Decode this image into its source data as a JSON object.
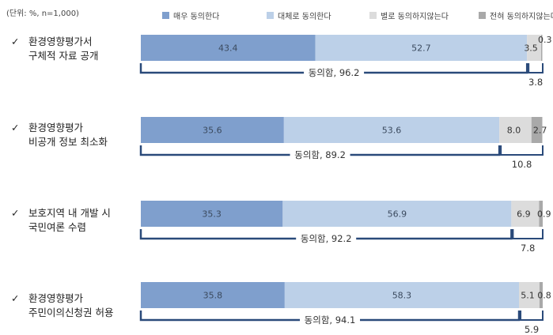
{
  "unit_note": "(단위: %, n=1,000)",
  "chart_data": {
    "type": "bar",
    "stacked": true,
    "orientation": "horizontal",
    "categories": [
      [
        "환경영향평가서",
        "구체적 자료 공개"
      ],
      [
        "환경영향평가",
        "비공개 정보 최소화"
      ],
      [
        "보호지역 내 개발 시",
        "국민여론 수렴"
      ],
      [
        "환경영향평가",
        "주민이의신청권 허용"
      ]
    ],
    "series": [
      {
        "name": "매우 동의한다",
        "color": "#7f9fcd",
        "values": [
          43.4,
          35.6,
          35.3,
          35.8
        ],
        "labels": [
          "43.4",
          "35.6",
          "35.3",
          "35.8"
        ]
      },
      {
        "name": "대체로 동의한다",
        "color": "#bcd0e8",
        "values": [
          52.7,
          53.6,
          56.9,
          58.3
        ],
        "labels": [
          "52.7",
          "53.6",
          "56.9",
          "58.3"
        ]
      },
      {
        "name": "별로 동의하지않는다",
        "color": "#dcdcdc",
        "values": [
          3.5,
          8.0,
          6.9,
          5.1
        ],
        "labels": [
          "3.5",
          "8.0",
          "6.9",
          "5.1"
        ]
      },
      {
        "name": "전혀 동의하지않는다",
        "color": "#a9a9a9",
        "values": [
          0.3,
          2.7,
          0.9,
          0.8
        ],
        "labels": [
          "0.3",
          "2.7",
          "0.9",
          "0.8"
        ]
      }
    ],
    "agree_totals": [
      "동의함, 96.2",
      "동의함, 89.2",
      "동의함, 92.2",
      "동의함, 94.1"
    ],
    "disagree_totals": [
      "3.8",
      "10.8",
      "7.8",
      "5.9"
    ],
    "xlim": [
      0,
      100
    ],
    "legend_position": "top"
  },
  "check_mark": "✓",
  "colors": {
    "bracket": "#2a4a7a",
    "text_dark": "#333333",
    "text_bar": "#3b4a5e"
  }
}
